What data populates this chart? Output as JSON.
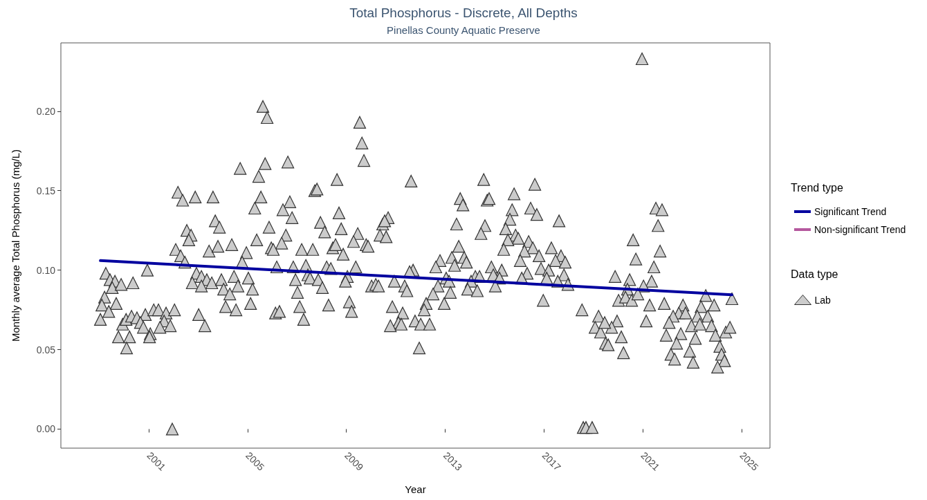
{
  "chart_data": {
    "type": "scatter",
    "title": "Total Phosphorus - Discrete, All Depths",
    "subtitle": "Pinellas County Aquatic Preserve",
    "xlabel": "Year",
    "ylabel": "Monthly average Total Phosphorus (mg/L)",
    "legend_title": "Trend type",
    "annotations": [
      "Data type"
    ],
    "legend": "right",
    "grid": false,
    "xlim": [
      1997.44,
      2026.15
    ],
    "xticks": [
      2001,
      2005,
      2009,
      2013,
      2017,
      2021,
      2025
    ],
    "ylim": [
      -0.012,
      0.243
    ],
    "yticks": [
      {
        "value": 0,
        "label": "0.00"
      },
      {
        "value": 0.05,
        "label": "0.05"
      },
      {
        "value": 0.1,
        "label": "0.10"
      },
      {
        "value": 0.15,
        "label": "0.15"
      },
      {
        "value": 0.2,
        "label": "0.20"
      }
    ],
    "series": [
      {
        "name": "Significant Trend",
        "type": "line",
        "color": "#00009f",
        "line_style": "solid",
        "marker": "none",
        "x": [
          1999.04,
          2024.61
        ],
        "values": [
          0.106,
          0.0845
        ]
      },
      {
        "name": "Non-significant Trend",
        "type": "line",
        "color": "#b5589e",
        "line_style": "solid",
        "marker": "none"
      },
      {
        "name": "Lab",
        "color": "#cccccc",
        "marker": "triangle",
        "x": [
          2004.7,
          2002.18,
          2002.37,
          2002.88,
          2003.6,
          2003.69,
          2003.86,
          2002.54,
          2002.71,
          2002.62,
          2002.09,
          2002.29,
          2002.46,
          2003.44,
          2003.8,
          2004.36,
          2004.95,
          2004.78,
          2000.94,
          1999.26,
          1999.43,
          1999.63,
          1999.52,
          1999.88,
          2000.36,
          1999.21,
          1999.1,
          1999.68,
          1999.38,
          1999.04,
          1999.94,
          2000.08,
          2000.3,
          2000.52,
          2000.86,
          2001.2,
          2001.39,
          2001.7,
          2002.04,
          2000.66,
          2000.78,
          2001.62,
          2001.87,
          2001.45,
          1999.77,
          2000.22,
          2001.06,
          2001.03,
          2000.1,
          2003.02,
          2003.27,
          2001.95,
          2002.93,
          2002.76,
          2003.13,
          2003.35,
          2003.55,
          2003.13,
          2003.94,
          2004.45,
          2004.61,
          2004.03,
          2004.28,
          2004.11,
          2004.53,
          2005.62,
          2005.79,
          2009.54,
          2009.63,
          2009.71,
          2005.71,
          2006.63,
          2005.45,
          2008.62,
          2011.62,
          2007.72,
          2007.81,
          2005.54,
          2005.29,
          2006.71,
          2006.43,
          2006.8,
          2008.7,
          2007.95,
          2008.12,
          2008.79,
          2009.46,
          2009.29,
          2005.87,
          2006.55,
          2006.38,
          2005.37,
          2005.96,
          2006.04,
          2007.19,
          2007.64,
          2008.45,
          2008.56,
          2008.87,
          2009.8,
          2009.88,
          2010.47,
          2010.69,
          2010.36,
          2010.61,
          2010.55,
          2005.03,
          2005.2,
          2005.12,
          2006.18,
          2006.85,
          2007.36,
          2008.2,
          2008.37,
          2009.38,
          2007.44,
          2007.53,
          2006.94,
          2007.86,
          2008.03,
          2007.02,
          2009.04,
          2008.96,
          2008.28,
          2009.12,
          2009.21,
          2007.11,
          2007.27,
          2006.13,
          2006.29,
          2010.02,
          2010.19,
          2010.3,
          2010.94,
          2011.36,
          2011.45,
          2011.7,
          2011.56,
          2010.86,
          2011.28,
          2011.11,
          2010.78,
          2011.22,
          2011.78,
          2012.01,
          2011.95,
          2014.56,
          2016.63,
          2013.61,
          2013.72,
          2014.7,
          2014.78,
          2015.79,
          2015.71,
          2016.46,
          2016.71,
          2015.62,
          2017.61,
          2013.46,
          2014.61,
          2014.45,
          2015.45,
          2015.85,
          2015.96,
          2015.54,
          2013.55,
          2016.38,
          2016.55,
          2017.3,
          2015.37,
          2016.21,
          2016.8,
          2017.69,
          2017.47,
          2017.86,
          2013.27,
          2013.77,
          2013.86,
          2013.38,
          2012.79,
          2012.62,
          2016.04,
          2014.87,
          2015.29,
          2016.32,
          2016.88,
          2017.19,
          2017.81,
          2014.22,
          2014.39,
          2014.95,
          2015.2,
          2013.04,
          2013.16,
          2014.05,
          2016.1,
          2017.11,
          2017.56,
          2017.97,
          2012.71,
          2015.03,
          2013.91,
          2014.3,
          2012.51,
          2013.21,
          2012.23,
          2012.96,
          2016.97,
          2018.54,
          2012.15,
          2012.37,
          2019.21,
          2019.07,
          2019.29,
          2019.49,
          2018.59,
          2018.7,
          2018.95,
          2020.97,
          2021.53,
          2021.78,
          2021.62,
          2020.61,
          2021.7,
          2020.72,
          2021.45,
          2019.88,
          2020.47,
          2021.36,
          2021.03,
          2020.38,
          2023.55,
          2020.02,
          2020.3,
          2020.55,
          2020.8,
          2024.61,
          2021.28,
          2021.87,
          2022.63,
          2023.36,
          2023.89,
          2022.46,
          2022.73,
          2022.23,
          2023.63,
          2023.21,
          2019.96,
          2022.07,
          2022.97,
          2023.31,
          2023.78,
          2019.74,
          2019.46,
          2021.14,
          2024.36,
          2024.53,
          2020.13,
          2021.95,
          2022.54,
          2023.94,
          2022.37,
          2023.13,
          2024.12,
          2019.6,
          2020.22,
          2022.14,
          2022.9,
          2022.29,
          2024.19,
          2024.31,
          2023.04,
          2024.03
        ],
        "values": [
          0.164,
          0.149,
          0.144,
          0.146,
          0.146,
          0.131,
          0.127,
          0.125,
          0.122,
          0.119,
          0.113,
          0.109,
          0.105,
          0.112,
          0.115,
          0.116,
          0.111,
          0.105,
          0.1,
          0.098,
          0.094,
          0.093,
          0.089,
          0.091,
          0.092,
          0.083,
          0.078,
          0.079,
          0.074,
          0.069,
          0.066,
          0.069,
          0.071,
          0.07,
          0.072,
          0.075,
          0.075,
          0.073,
          0.075,
          0.067,
          0.064,
          0.068,
          0.065,
          0.064,
          0.058,
          0.058,
          0.06,
          0.058,
          0.051,
          0.072,
          0.065,
          0.0,
          0.098,
          0.092,
          0.096,
          0.094,
          0.092,
          0.09,
          0.094,
          0.096,
          0.09,
          0.088,
          0.085,
          0.077,
          0.075,
          0.203,
          0.196,
          0.193,
          0.18,
          0.169,
          0.167,
          0.168,
          0.159,
          0.157,
          0.156,
          0.15,
          0.151,
          0.146,
          0.139,
          0.143,
          0.138,
          0.133,
          0.136,
          0.13,
          0.124,
          0.126,
          0.123,
          0.118,
          0.127,
          0.122,
          0.117,
          0.119,
          0.114,
          0.113,
          0.113,
          0.113,
          0.114,
          0.116,
          0.11,
          0.116,
          0.115,
          0.129,
          0.133,
          0.122,
          0.121,
          0.131,
          0.095,
          0.088,
          0.079,
          0.102,
          0.102,
          0.103,
          0.102,
          0.101,
          0.102,
          0.097,
          0.095,
          0.094,
          0.094,
          0.089,
          0.086,
          0.096,
          0.093,
          0.078,
          0.08,
          0.074,
          0.077,
          0.069,
          0.073,
          0.074,
          0.09,
          0.091,
          0.09,
          0.093,
          0.09,
          0.087,
          0.1,
          0.099,
          0.077,
          0.073,
          0.067,
          0.065,
          0.066,
          0.068,
          0.066,
          0.051,
          0.157,
          0.154,
          0.145,
          0.141,
          0.144,
          0.145,
          0.148,
          0.138,
          0.139,
          0.135,
          0.132,
          0.131,
          0.129,
          0.128,
          0.123,
          0.126,
          0.122,
          0.12,
          0.119,
          0.115,
          0.118,
          0.114,
          0.114,
          0.113,
          0.112,
          0.109,
          0.109,
          0.106,
          0.105,
          0.108,
          0.108,
          0.105,
          0.103,
          0.106,
          0.102,
          0.106,
          0.102,
          0.1,
          0.098,
          0.101,
          0.1,
          0.097,
          0.096,
          0.096,
          0.097,
          0.095,
          0.095,
          0.093,
          0.093,
          0.095,
          0.095,
          0.093,
          0.091,
          0.09,
          0.09,
          0.088,
          0.087,
          0.085,
          0.086,
          0.079,
          0.079,
          0.081,
          0.075,
          0.075,
          0.066,
          0.071,
          0.064,
          0.061,
          0.054,
          0.001,
          0.001,
          0.001,
          0.233,
          0.139,
          0.138,
          0.128,
          0.119,
          0.112,
          0.107,
          0.102,
          0.096,
          0.094,
          0.093,
          0.09,
          0.088,
          0.084,
          0.081,
          0.083,
          0.081,
          0.085,
          0.082,
          0.078,
          0.079,
          0.078,
          0.077,
          0.078,
          0.073,
          0.073,
          0.071,
          0.071,
          0.071,
          0.068,
          0.067,
          0.065,
          0.066,
          0.065,
          0.064,
          0.067,
          0.068,
          0.061,
          0.064,
          0.058,
          0.059,
          0.06,
          0.059,
          0.054,
          0.057,
          0.052,
          0.053,
          0.048,
          0.047,
          0.049,
          0.044,
          0.047,
          0.043,
          0.042,
          0.039
        ]
      }
    ]
  }
}
